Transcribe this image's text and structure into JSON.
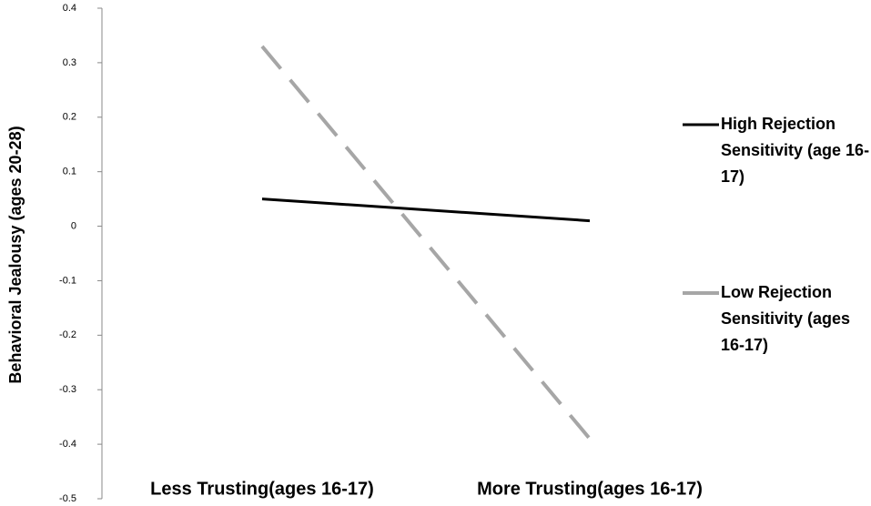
{
  "chart_data": {
    "type": "line",
    "y_label": "Behavioral Jealousy (ages 20-28)",
    "categories": [
      "Less Trusting(ages 16-17)",
      "More Trusting(ages 16-17)"
    ],
    "series": [
      {
        "name": "High Rejection Sensitivity (age 16-17)",
        "color": "#000000",
        "dash": false,
        "values": [
          0.05,
          0.01
        ]
      },
      {
        "name": "Low Rejection Sensitivity (ages 16-17)",
        "color": "#a6a6a6",
        "dash": true,
        "values": [
          0.33,
          -0.39
        ]
      }
    ],
    "ylim": [
      -0.5,
      0.4
    ],
    "yticks": [
      -0.5,
      -0.4,
      -0.3,
      -0.2,
      -0.1,
      0,
      0.1,
      0.2,
      0.3,
      0.4
    ],
    "grid": false,
    "legend": "right"
  }
}
